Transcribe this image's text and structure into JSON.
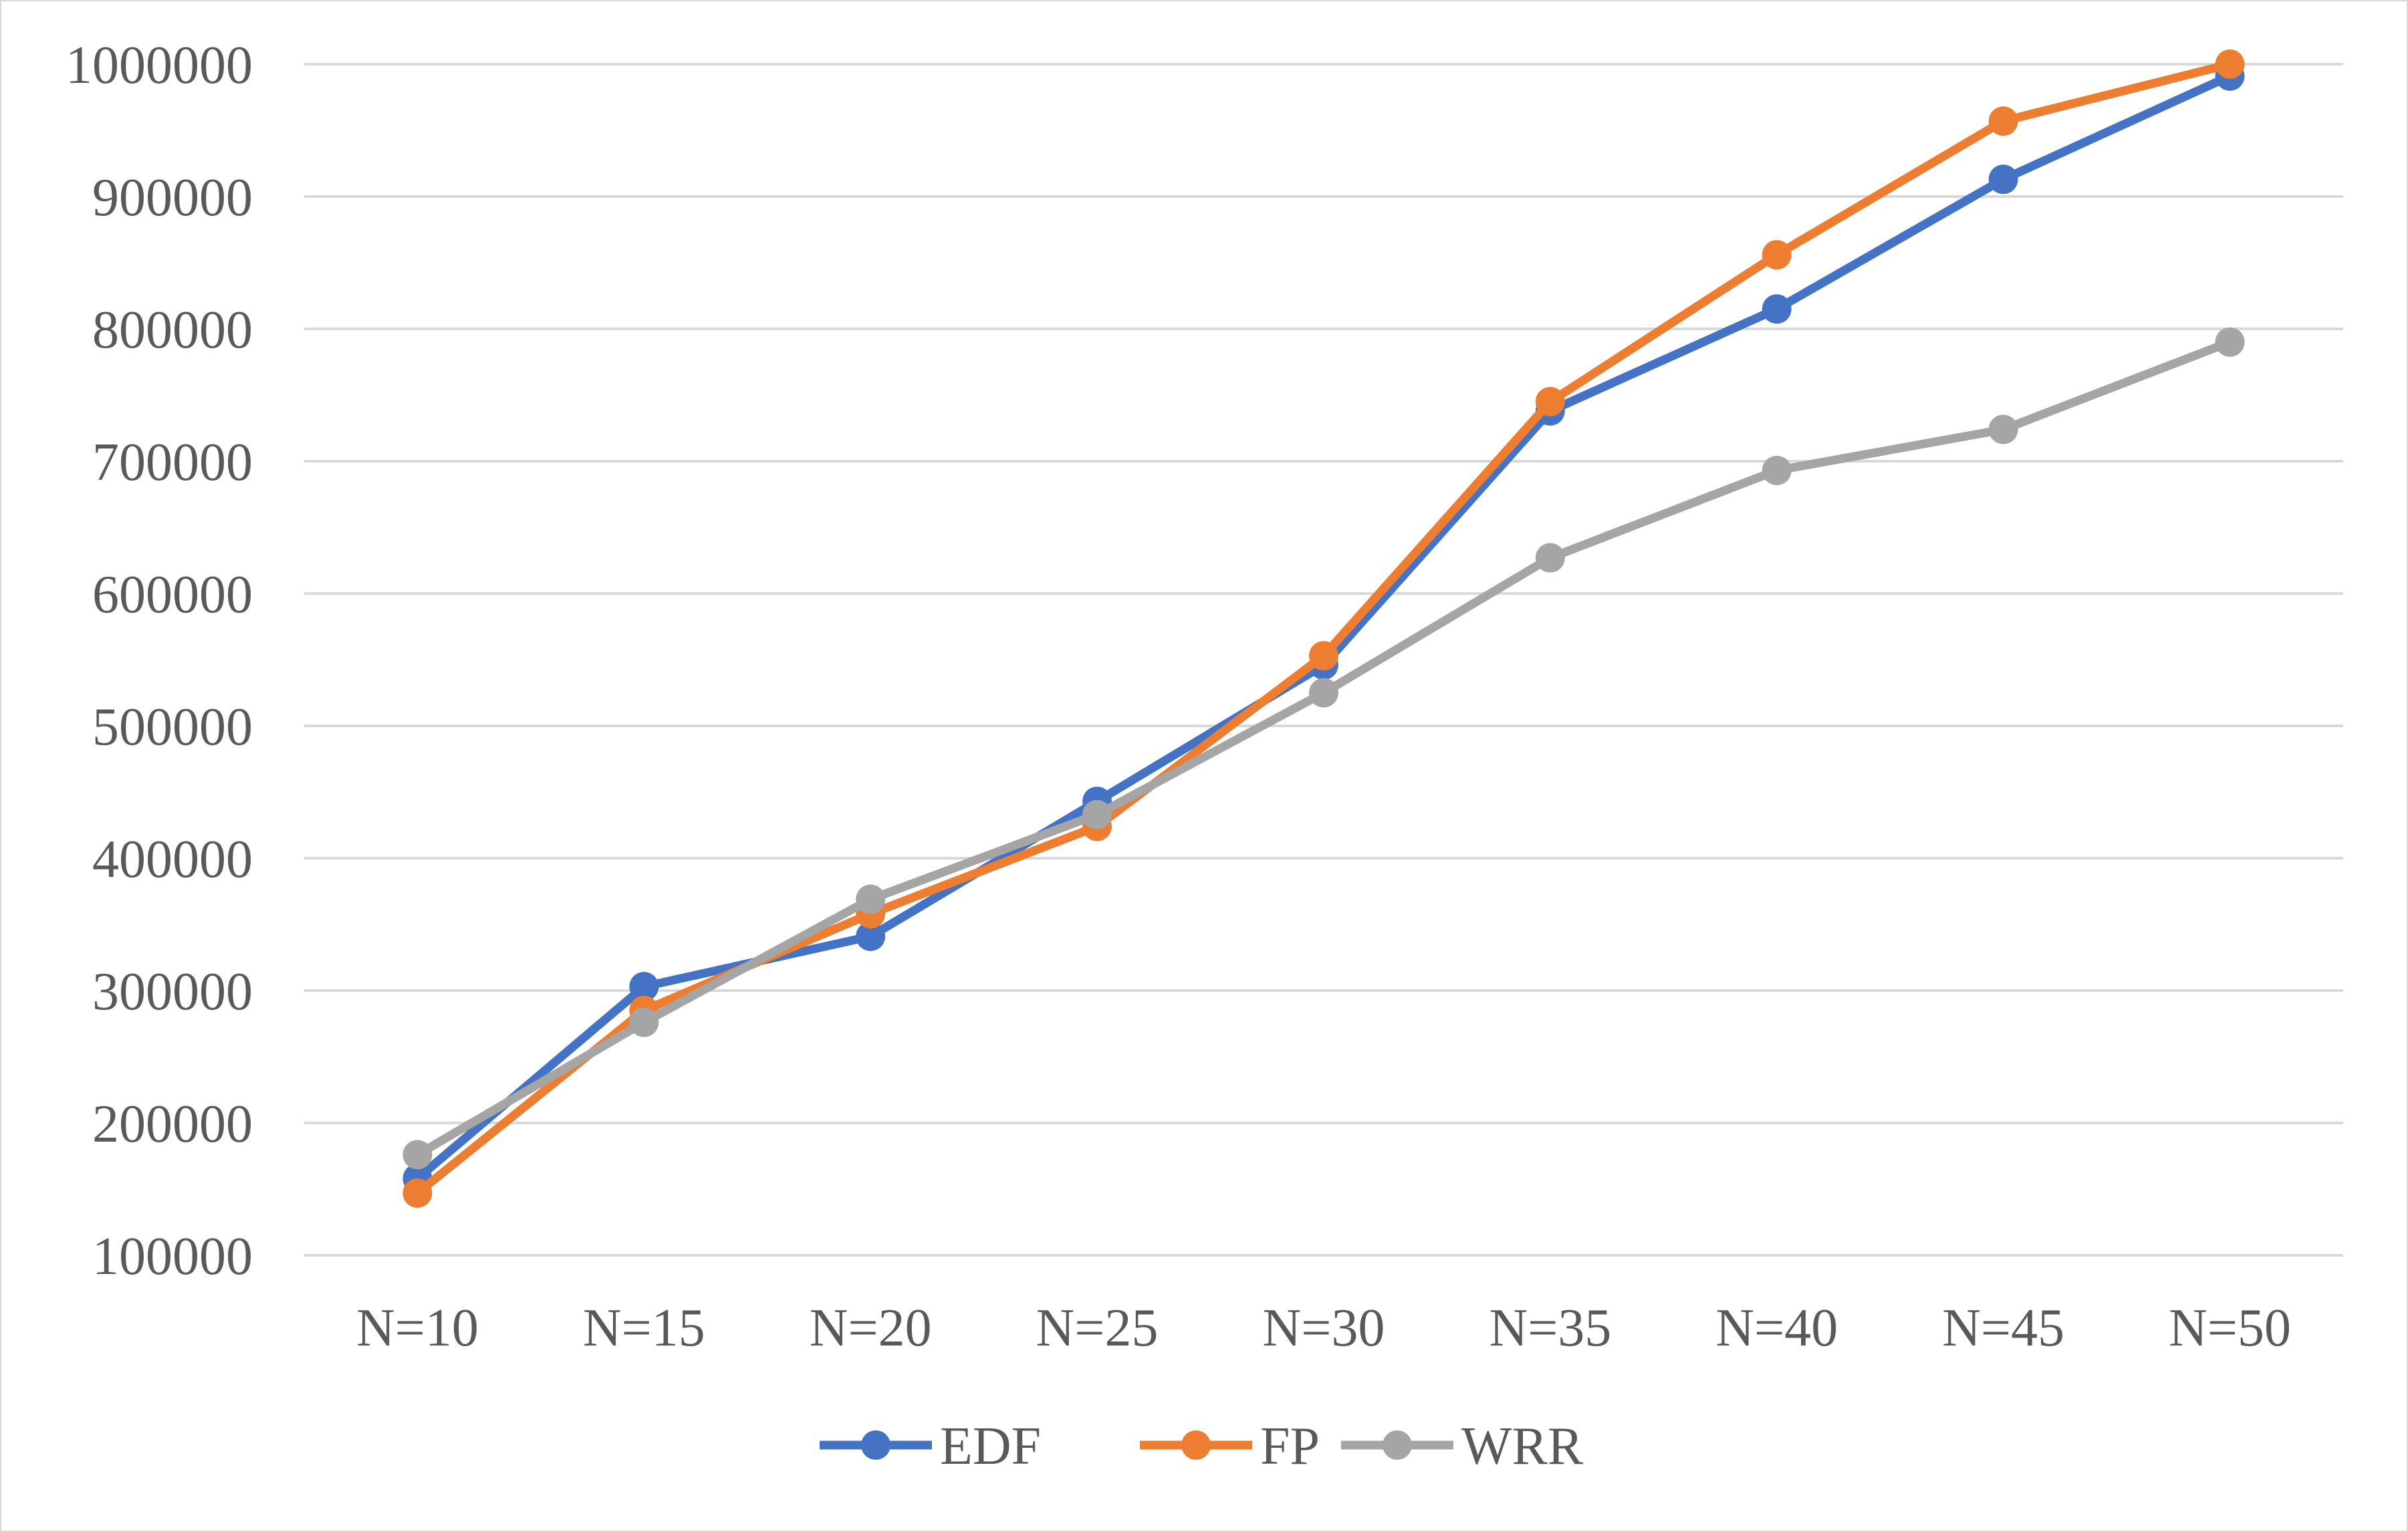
{
  "chart_data": {
    "type": "line",
    "title": "",
    "xlabel": "",
    "ylabel": "",
    "categories": [
      "N=10",
      "N=15",
      "N=20",
      "N=25",
      "N=30",
      "N=35",
      "N=40",
      "N=45",
      "N=50"
    ],
    "ylim": [
      100000,
      1000000
    ],
    "yticks": [
      "100000",
      "200000",
      "300000",
      "400000",
      "500000",
      "600000",
      "700000",
      "800000",
      "900000",
      "1000000"
    ],
    "grid": true,
    "legend_position": "bottom",
    "series": [
      {
        "name": "EDF",
        "color": "#4472c4",
        "values": [
          158000,
          303000,
          341000,
          443000,
          546000,
          738000,
          815000,
          913000,
          991000
        ]
      },
      {
        "name": "FP",
        "color": "#ed7d31",
        "values": [
          147000,
          285000,
          358000,
          424000,
          553000,
          745000,
          856000,
          957000,
          1000000
        ]
      },
      {
        "name": "WRR",
        "color": "#a5a5a5",
        "values": [
          176000,
          276000,
          369000,
          433000,
          525000,
          627000,
          693000,
          724000,
          790000
        ]
      }
    ]
  }
}
